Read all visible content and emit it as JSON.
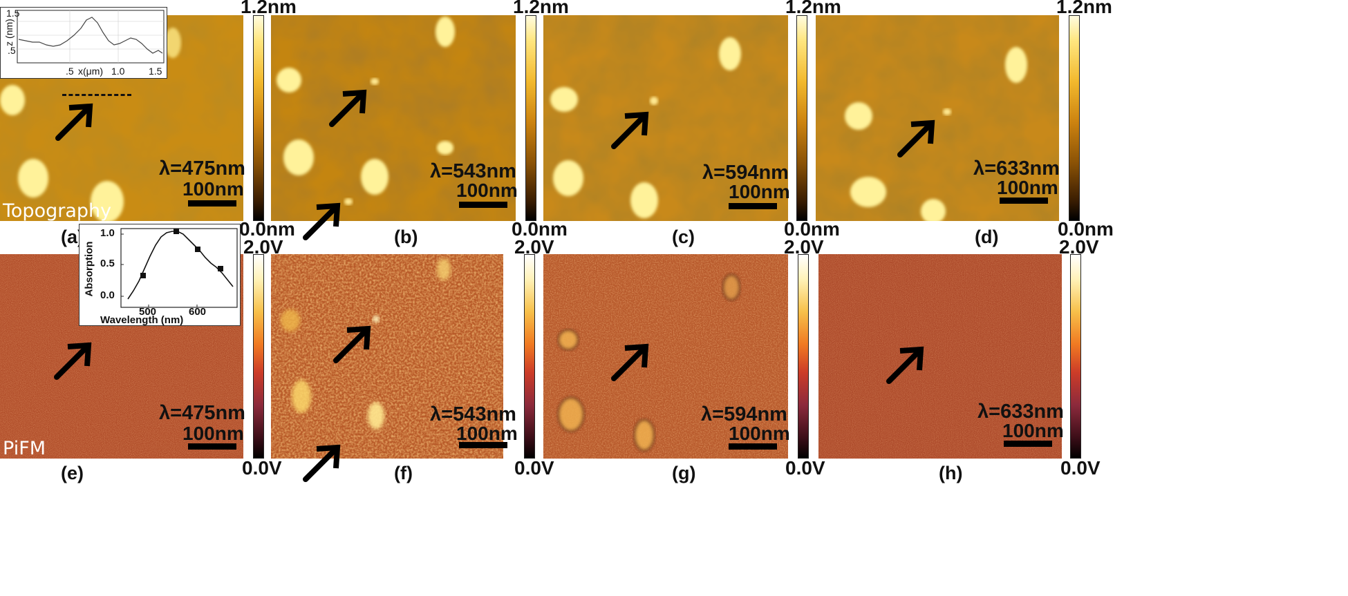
{
  "colorbars": {
    "topography": {
      "max": "1.2nm",
      "min": "0.0nm"
    },
    "pifm": {
      "max": "2.0V",
      "min": "0.0V"
    }
  },
  "mode_labels": {
    "topography": "Topography",
    "pifm": "PiFM"
  },
  "panels": [
    {
      "label": "(a)",
      "wavelength": "λ=475nm",
      "scale": "100nm"
    },
    {
      "label": "(b)",
      "wavelength": "λ=543nm",
      "scale": "100nm"
    },
    {
      "label": "(c)",
      "wavelength": "λ=594nm",
      "scale": "100nm"
    },
    {
      "label": "(d)",
      "wavelength": "λ=633nm",
      "scale": "100nm"
    },
    {
      "label": "(e)",
      "wavelength": "λ=475nm",
      "scale": "100nm"
    },
    {
      "label": "(f)",
      "wavelength": "λ=543nm",
      "scale": "100nm"
    },
    {
      "label": "(g)",
      "wavelength": "λ=594nm",
      "scale": "100nm"
    },
    {
      "label": "(h)",
      "wavelength": "λ=633nm",
      "scale": "100nm"
    }
  ],
  "profile_inset": {
    "y_label": "z (nm)",
    "x_label": "x(μm)",
    "y_ticks": [
      "1.5",
      ".5"
    ],
    "x_ticks": [
      ".5",
      "1.0",
      "1.5"
    ]
  },
  "absorption_inset": {
    "y_label": "Absorption",
    "x_label": "Wavelength  (nm)",
    "y_ticks": [
      "1.0",
      "0.5",
      "0.0"
    ],
    "x_ticks": [
      "500",
      "600"
    ]
  },
  "colors": {
    "topo_base": "#c98c14",
    "topo_particle": "#fff29a",
    "pifm_base": "#b5502a",
    "arrow": "#000000"
  }
}
